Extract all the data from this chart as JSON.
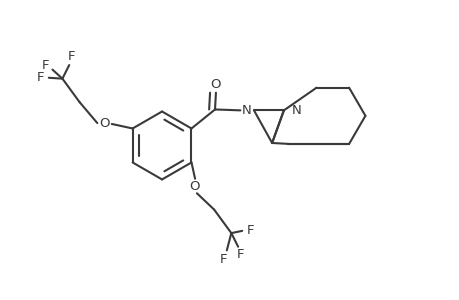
{
  "bg_color": "#ffffff",
  "line_color": "#3a3a3a",
  "lw": 1.5,
  "font_size": 9.5,
  "fig_w": 4.6,
  "fig_h": 3.0,
  "dpi": 100,
  "xlim": [
    0,
    10
  ],
  "ylim": [
    0,
    6.5
  ]
}
